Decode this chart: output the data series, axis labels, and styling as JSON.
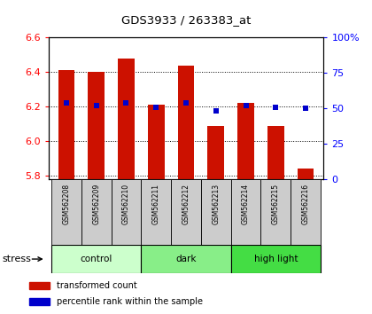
{
  "title": "GDS3933 / 263383_at",
  "samples": [
    "GSM562208",
    "GSM562209",
    "GSM562210",
    "GSM562211",
    "GSM562212",
    "GSM562213",
    "GSM562214",
    "GSM562215",
    "GSM562216"
  ],
  "transformed_counts": [
    6.41,
    6.4,
    6.48,
    6.21,
    6.44,
    6.09,
    6.22,
    6.09,
    5.84
  ],
  "percentile_ranks": [
    54,
    52,
    54,
    51,
    54,
    48,
    52,
    51,
    50
  ],
  "ylim": [
    5.78,
    6.6
  ],
  "yticks_left": [
    5.8,
    6.0,
    6.2,
    6.4,
    6.6
  ],
  "yticks_right": [
    0,
    25,
    50,
    75,
    100
  ],
  "groups": [
    {
      "label": "control",
      "indices": [
        0,
        1,
        2
      ],
      "color": "#ccffcc"
    },
    {
      "label": "dark",
      "indices": [
        3,
        4,
        5
      ],
      "color": "#88ee88"
    },
    {
      "label": "high light",
      "indices": [
        6,
        7,
        8
      ],
      "color": "#44dd44"
    }
  ],
  "bar_color": "#cc1100",
  "percentile_color": "#0000cc",
  "bar_width": 0.55,
  "stress_label": "stress",
  "legend_items": [
    {
      "label": "transformed count",
      "color": "#cc1100"
    },
    {
      "label": "percentile rank within the sample",
      "color": "#0000cc"
    }
  ],
  "background_color": "#ffffff",
  "plot_bg_color": "#ffffff",
  "tick_label_area_color": "#cccccc"
}
